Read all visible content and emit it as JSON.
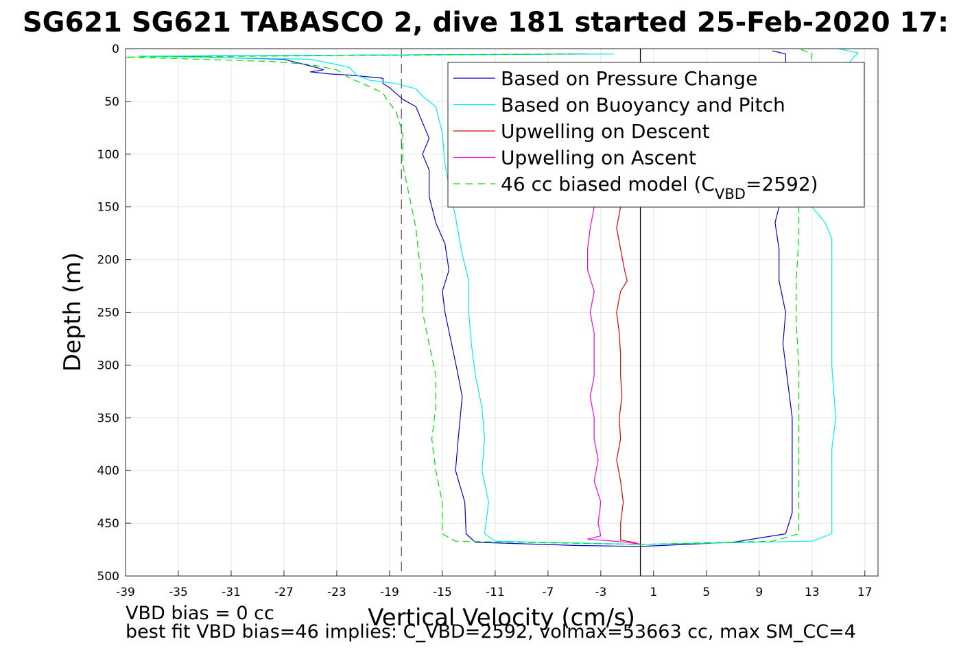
{
  "chart_data": {
    "type": "line",
    "title": "SG621 SG621 TABASCO 2, dive 181 started 25-Feb-2020 17:",
    "xlabel": "Vertical Velocity (cm/s)",
    "ylabel": "Depth (m)",
    "xlim": [
      -39,
      18
    ],
    "ylim": [
      0,
      500
    ],
    "y_reversed": true,
    "grid": true,
    "legend_position": "top-right",
    "x_ticks": [
      "-39",
      "-35",
      "-31",
      "-27",
      "-23",
      "-19",
      "-15",
      "-11",
      "-7",
      "-3",
      "1",
      "5",
      "9",
      "13",
      "17"
    ],
    "y_ticks": [
      "0",
      "50",
      "100",
      "150",
      "200",
      "250",
      "300",
      "350",
      "400",
      "450",
      "500"
    ],
    "reference_lines": [
      {
        "orientation": "vertical",
        "x": -18.1,
        "style": "dashed",
        "color": "#555555"
      },
      {
        "orientation": "vertical",
        "x": 0,
        "style": "solid",
        "color": "#000000"
      }
    ],
    "legend": [
      {
        "text": "Based on Pressure Change",
        "color": "#0000cc",
        "dash": "solid"
      },
      {
        "text": "Based on Buoyancy and Pitch",
        "color": "#00eeee",
        "dash": "solid"
      },
      {
        "text": "Upwelling on Descent",
        "color": "#dd0000",
        "dash": "solid"
      },
      {
        "text": "Upwelling on Ascent",
        "color": "#ee00ee",
        "dash": "solid"
      },
      {
        "text_main": "46 cc biased model (C",
        "text_sub": "VBD",
        "text_tail": "=2592)",
        "color": "#00dd00",
        "dash": "dashed"
      }
    ],
    "series": [
      {
        "name": "Based on Pressure Change",
        "color": "#0000cc",
        "points": [
          [
            -4,
            5
          ],
          [
            -36,
            7
          ],
          [
            -27,
            10
          ],
          [
            -24.5,
            18
          ],
          [
            -24,
            20
          ],
          [
            -25,
            22
          ],
          [
            -23.5,
            24
          ],
          [
            -22,
            25
          ],
          [
            -19.5,
            28
          ],
          [
            -19.5,
            33
          ],
          [
            -19,
            37
          ],
          [
            -18,
            48
          ],
          [
            -17,
            55
          ],
          [
            -16.5,
            70
          ],
          [
            -16,
            85
          ],
          [
            -16.5,
            100
          ],
          [
            -16,
            115
          ],
          [
            -16,
            140
          ],
          [
            -15.5,
            165
          ],
          [
            -14.8,
            185
          ],
          [
            -14.5,
            210
          ],
          [
            -15,
            230
          ],
          [
            -14.8,
            250
          ],
          [
            -14.3,
            280
          ],
          [
            -13.8,
            310
          ],
          [
            -13.5,
            330
          ],
          [
            -13.8,
            370
          ],
          [
            -14,
            400
          ],
          [
            -13.3,
            430
          ],
          [
            -13.2,
            460
          ],
          [
            -12.5,
            468
          ],
          [
            -5,
            471
          ],
          [
            0,
            472
          ],
          [
            7,
            468
          ],
          [
            9,
            464
          ],
          [
            11,
            460
          ],
          [
            11.5,
            440
          ],
          [
            11.5,
            400
          ],
          [
            11.5,
            350
          ],
          [
            11.2,
            320
          ],
          [
            11,
            300
          ],
          [
            10.8,
            280
          ],
          [
            11,
            250
          ],
          [
            10.5,
            220
          ],
          [
            10.5,
            190
          ],
          [
            10.2,
            165
          ],
          [
            10.5,
            150
          ],
          [
            11,
            100
          ],
          [
            11,
            50
          ],
          [
            11,
            5
          ],
          [
            10,
            2
          ]
        ]
      },
      {
        "name": "Based on Buoyancy and Pitch",
        "color": "#00eeee",
        "points": [
          [
            -2,
            5
          ],
          [
            -38,
            7
          ],
          [
            -25,
            10
          ],
          [
            -23,
            15
          ],
          [
            -22,
            18
          ],
          [
            -21.5,
            25
          ],
          [
            -20.5,
            30
          ],
          [
            -18.5,
            33
          ],
          [
            -17,
            38
          ],
          [
            -16.5,
            45
          ],
          [
            -15.5,
            55
          ],
          [
            -15,
            80
          ],
          [
            -14.8,
            110
          ],
          [
            -14.5,
            130
          ],
          [
            -14,
            160
          ],
          [
            -13.5,
            195
          ],
          [
            -13,
            220
          ],
          [
            -13,
            250
          ],
          [
            -12.8,
            280
          ],
          [
            -12.5,
            310
          ],
          [
            -12,
            340
          ],
          [
            -11.8,
            370
          ],
          [
            -12,
            400
          ],
          [
            -11.5,
            430
          ],
          [
            -11.8,
            460
          ],
          [
            -11,
            467
          ],
          [
            0,
            470
          ],
          [
            13,
            467
          ],
          [
            14.5,
            460
          ],
          [
            14.5,
            420
          ],
          [
            14.5,
            380
          ],
          [
            14.8,
            350
          ],
          [
            14.5,
            300
          ],
          [
            14.5,
            250
          ],
          [
            14.5,
            200
          ],
          [
            14.5,
            180
          ],
          [
            14,
            165
          ],
          [
            13,
            150
          ],
          [
            13.5,
            100
          ],
          [
            15,
            30
          ],
          [
            16,
            10
          ],
          [
            16.5,
            4
          ],
          [
            15,
            0
          ]
        ]
      },
      {
        "name": "Upwelling on Descent",
        "color": "#dd0000",
        "points": [
          [
            -1.5,
            150
          ],
          [
            -1.8,
            170
          ],
          [
            -1.5,
            190
          ],
          [
            -1.2,
            210
          ],
          [
            -1.0,
            220
          ],
          [
            -1.5,
            230
          ],
          [
            -1.8,
            250
          ],
          [
            -1.6,
            270
          ],
          [
            -1.5,
            290
          ],
          [
            -1.5,
            310
          ],
          [
            -1.4,
            330
          ],
          [
            -1.6,
            350
          ],
          [
            -1.5,
            370
          ],
          [
            -1.8,
            390
          ],
          [
            -1.5,
            410
          ],
          [
            -1.3,
            430
          ],
          [
            -1.5,
            450
          ],
          [
            -1.5,
            466
          ],
          [
            -0.5,
            468
          ],
          [
            0,
            470
          ]
        ]
      },
      {
        "name": "Upwelling on Ascent",
        "color": "#ee00ee",
        "points": [
          [
            -3.5,
            150
          ],
          [
            -3.8,
            170
          ],
          [
            -4,
            190
          ],
          [
            -4,
            210
          ],
          [
            -3.5,
            230
          ],
          [
            -3.8,
            250
          ],
          [
            -3.5,
            270
          ],
          [
            -3.5,
            290
          ],
          [
            -3.5,
            310
          ],
          [
            -3.8,
            330
          ],
          [
            -3.5,
            350
          ],
          [
            -3.5,
            370
          ],
          [
            -3.2,
            390
          ],
          [
            -3.5,
            410
          ],
          [
            -3.0,
            430
          ],
          [
            -3.2,
            450
          ],
          [
            -3.0,
            462
          ],
          [
            -4,
            465
          ],
          [
            -3,
            466
          ],
          [
            -1,
            468
          ],
          [
            0,
            470
          ]
        ]
      },
      {
        "name": "46 cc biased model (CVBD=2592)",
        "color": "#00dd00",
        "points": [
          [
            -5,
            5
          ],
          [
            -39,
            8
          ],
          [
            -28,
            12
          ],
          [
            -25,
            15
          ],
          [
            -23,
            20
          ],
          [
            -22,
            28
          ],
          [
            -20.5,
            36
          ],
          [
            -19.5,
            42
          ],
          [
            -19.2,
            48
          ],
          [
            -18.5,
            60
          ],
          [
            -18,
            80
          ],
          [
            -18,
            110
          ],
          [
            -17.5,
            140
          ],
          [
            -17,
            170
          ],
          [
            -16.8,
            195
          ],
          [
            -16.5,
            220
          ],
          [
            -16.5,
            250
          ],
          [
            -16,
            280
          ],
          [
            -15.5,
            310
          ],
          [
            -15.5,
            340
          ],
          [
            -15.8,
            370
          ],
          [
            -15.5,
            400
          ],
          [
            -15,
            430
          ],
          [
            -15,
            460
          ],
          [
            -14,
            467
          ],
          [
            0,
            470
          ],
          [
            10,
            467
          ],
          [
            12,
            460
          ],
          [
            12,
            420
          ],
          [
            12,
            380
          ],
          [
            12,
            340
          ],
          [
            12,
            300
          ],
          [
            11.8,
            260
          ],
          [
            11.8,
            220
          ],
          [
            12,
            180
          ],
          [
            12,
            150
          ],
          [
            12.5,
            100
          ],
          [
            12.8,
            50
          ],
          [
            13,
            5
          ],
          [
            12,
            0
          ]
        ]
      }
    ]
  },
  "notes": {
    "line1": "VBD bias = 0 cc",
    "line2": "best fit VBD bias=46 implies: C_VBD=2592, volmax=53663 cc, max SM_CC=4"
  }
}
